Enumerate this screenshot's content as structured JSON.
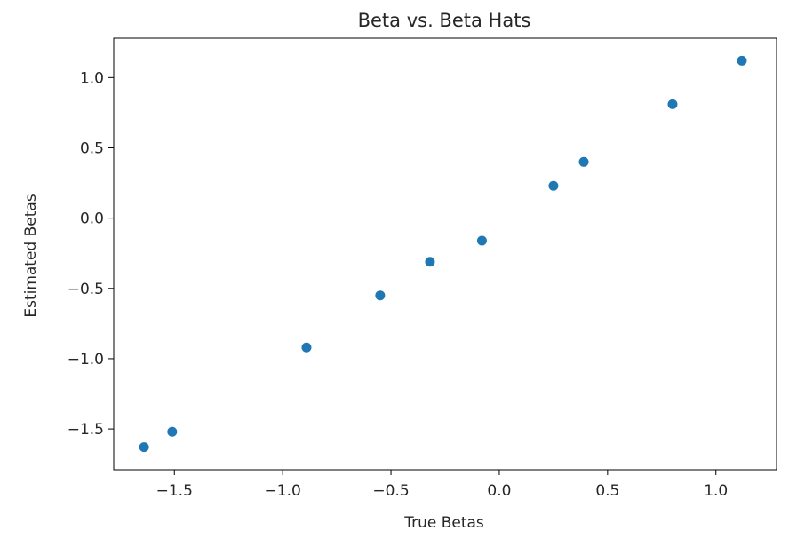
{
  "chart_data": {
    "type": "scatter",
    "title": "Beta vs. Beta Hats",
    "xlabel": "True Betas",
    "ylabel": "Estimated Betas",
    "xlim": [
      -1.78,
      1.28
    ],
    "ylim": [
      -1.79,
      1.28
    ],
    "xticks": [
      -1.5,
      -1.0,
      -0.5,
      0.0,
      0.5,
      1.0
    ],
    "xtick_labels": [
      "−1.5",
      "−1.0",
      "−0.5",
      "0.0",
      "0.5",
      "1.0"
    ],
    "yticks": [
      -1.5,
      -1.0,
      -0.5,
      0.0,
      0.5,
      1.0
    ],
    "ytick_labels": [
      "−1.5",
      "−1.0",
      "−0.5",
      "0.0",
      "0.5",
      "1.0"
    ],
    "grid": false,
    "marker_color": "#1f77b4",
    "series": [
      {
        "points": [
          {
            "x": -1.64,
            "y": -1.63
          },
          {
            "x": -1.51,
            "y": -1.52
          },
          {
            "x": -0.89,
            "y": -0.92
          },
          {
            "x": -0.55,
            "y": -0.55
          },
          {
            "x": -0.32,
            "y": -0.31
          },
          {
            "x": -0.08,
            "y": -0.16
          },
          {
            "x": 0.25,
            "y": 0.23
          },
          {
            "x": 0.39,
            "y": 0.4
          },
          {
            "x": 0.8,
            "y": 0.81
          },
          {
            "x": 1.12,
            "y": 1.12
          }
        ]
      }
    ]
  }
}
